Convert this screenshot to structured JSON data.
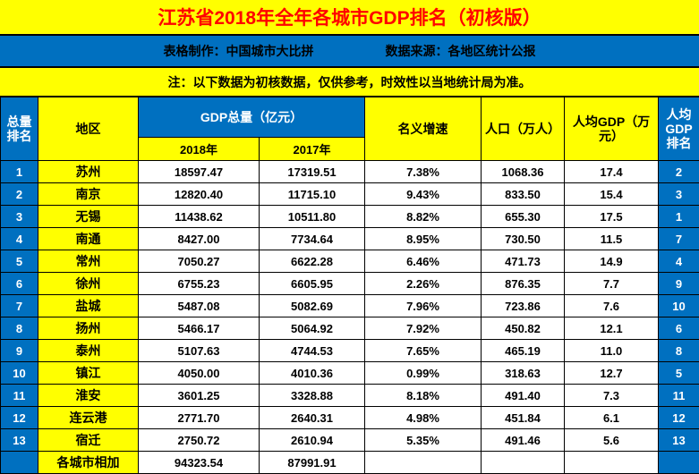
{
  "header": {
    "title": "江苏省2018年全年各城市GDP排名（初核版）",
    "maker": "表格制作：中国城市大比拼",
    "source": "数据来源：各地区统计公报",
    "note": "注：以下数据为初核数据，仅供参考，时效性以当地统计局为准。"
  },
  "table": {
    "headers": {
      "total_rank": "总量排名",
      "region": "地区",
      "gdp_total": "GDP总量（亿元）",
      "y2018": "2018年",
      "y2017": "2017年",
      "growth": "名义增速",
      "population": "人口（万人）",
      "per_capita": "人均GDP（万元）",
      "per_capita_rank": "人均GDP排名"
    },
    "footer": {
      "label": "各城市相加",
      "gdp_2018": "94323.54",
      "gdp_2017": "87991.91"
    }
  },
  "chart_data": {
    "type": "table",
    "title": "江苏省2018年全年各城市GDP排名（初核版）",
    "columns": [
      "总量排名",
      "地区",
      "GDP总量 2018年（亿元）",
      "GDP总量 2017年（亿元）",
      "名义增速",
      "人口（万人）",
      "人均GDP（万元）",
      "人均GDP排名"
    ],
    "rows": [
      [
        "1",
        "苏州",
        "18597.47",
        "17319.51",
        "7.38%",
        "1068.36",
        "17.4",
        "2"
      ],
      [
        "2",
        "南京",
        "12820.40",
        "11715.10",
        "9.43%",
        "833.50",
        "15.4",
        "3"
      ],
      [
        "3",
        "无锡",
        "11438.62",
        "10511.80",
        "8.82%",
        "655.30",
        "17.5",
        "1"
      ],
      [
        "4",
        "南通",
        "8427.00",
        "7734.64",
        "8.95%",
        "730.50",
        "11.5",
        "7"
      ],
      [
        "5",
        "常州",
        "7050.27",
        "6622.28",
        "6.46%",
        "471.73",
        "14.9",
        "4"
      ],
      [
        "6",
        "徐州",
        "6755.23",
        "6605.95",
        "2.26%",
        "876.35",
        "7.7",
        "9"
      ],
      [
        "7",
        "盐城",
        "5487.08",
        "5082.69",
        "7.96%",
        "723.86",
        "7.6",
        "10"
      ],
      [
        "8",
        "扬州",
        "5466.17",
        "5064.92",
        "7.92%",
        "450.82",
        "12.1",
        "6"
      ],
      [
        "9",
        "泰州",
        "5107.63",
        "4744.53",
        "7.65%",
        "465.19",
        "11.0",
        "8"
      ],
      [
        "10",
        "镇江",
        "4050.00",
        "4010.36",
        "0.99%",
        "318.63",
        "12.7",
        "5"
      ],
      [
        "11",
        "淮安",
        "3601.25",
        "3328.88",
        "8.18%",
        "491.40",
        "7.3",
        "11"
      ],
      [
        "12",
        "连云港",
        "2771.70",
        "2640.31",
        "4.98%",
        "451.84",
        "6.1",
        "12"
      ],
      [
        "13",
        "宿迁",
        "2750.72",
        "2610.94",
        "5.35%",
        "491.46",
        "5.6",
        "13"
      ]
    ],
    "footer_row": [
      "",
      "各城市相加",
      "94323.54",
      "87991.91",
      "",
      "",
      "",
      ""
    ]
  }
}
